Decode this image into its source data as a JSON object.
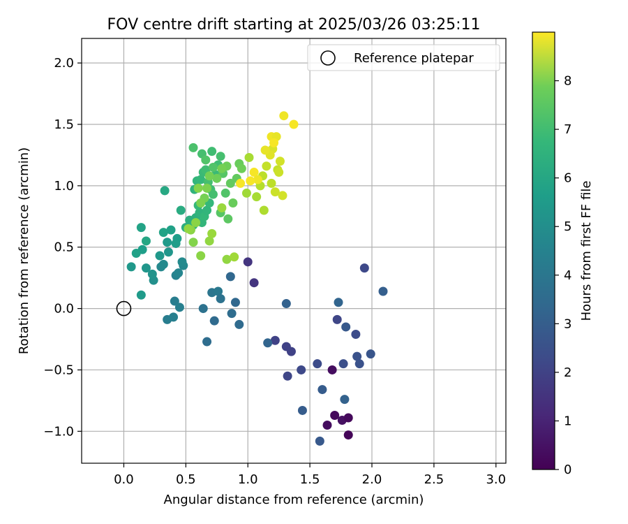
{
  "chart_data": {
    "type": "scatter",
    "title": "FOV centre drift starting at 2025/03/26 03:25:11",
    "xlabel": "Angular distance from reference (arcmin)",
    "ylabel": "Rotation from reference (arcmin)",
    "xlim": [
      -0.34,
      3.08
    ],
    "ylim": [
      -1.26,
      2.2
    ],
    "x_ticks": [
      0.0,
      0.5,
      1.0,
      1.5,
      2.0,
      2.5,
      3.0
    ],
    "x_tick_labels": [
      "0.0",
      "0.5",
      "1.0",
      "1.5",
      "2.0",
      "2.5",
      "3.0"
    ],
    "y_ticks": [
      -1.0,
      -0.5,
      0.0,
      0.5,
      1.0,
      1.5,
      2.0
    ],
    "y_tick_labels": [
      "−1.0",
      "−0.5",
      "0.0",
      "0.5",
      "1.0",
      "1.5",
      "2.0"
    ],
    "grid": true,
    "colormap": "viridis",
    "colorbar": {
      "label": "Hours from first FF file",
      "range": [
        0,
        9
      ],
      "ticks": [
        0,
        1,
        2,
        3,
        4,
        5,
        6,
        7,
        8
      ],
      "tick_labels": [
        "0",
        "1",
        "2",
        "3",
        "4",
        "5",
        "6",
        "7",
        "8"
      ]
    },
    "legend": {
      "position": "top-right",
      "entries": [
        "Reference platepar"
      ]
    },
    "reference_point": {
      "x": 0.0,
      "y": 0.0
    },
    "points": [
      [
        1.68,
        -0.5,
        0.3
      ],
      [
        1.7,
        -0.87,
        0.2
      ],
      [
        1.64,
        -0.95,
        0.3
      ],
      [
        1.76,
        -0.91,
        0.4
      ],
      [
        1.81,
        -0.89,
        0.2
      ],
      [
        1.81,
        -1.03,
        0.1
      ],
      [
        1.0,
        0.38,
        1.4
      ],
      [
        1.05,
        0.21,
        1.4
      ],
      [
        1.22,
        -0.26,
        1.8
      ],
      [
        1.31,
        -0.31,
        1.8
      ],
      [
        1.35,
        -0.35,
        1.8
      ],
      [
        1.32,
        -0.55,
        1.9
      ],
      [
        1.43,
        -0.5,
        2.0
      ],
      [
        1.56,
        -0.45,
        2.1
      ],
      [
        1.72,
        -0.09,
        1.9
      ],
      [
        1.77,
        -0.45,
        2.2
      ],
      [
        1.94,
        0.33,
        2.0
      ],
      [
        1.87,
        -0.21,
        2.1
      ],
      [
        1.88,
        -0.39,
        2.3
      ],
      [
        1.9,
        -0.45,
        2.3
      ],
      [
        1.99,
        -0.37,
        2.4
      ],
      [
        1.79,
        -0.15,
        2.5
      ],
      [
        1.6,
        -0.66,
        2.6
      ],
      [
        1.78,
        -0.74,
        2.8
      ],
      [
        1.44,
        -0.83,
        2.6
      ],
      [
        1.58,
        -1.08,
        2.5
      ],
      [
        1.31,
        0.04,
        2.8
      ],
      [
        1.73,
        0.05,
        2.9
      ],
      [
        2.09,
        0.14,
        2.7
      ],
      [
        1.16,
        -0.28,
        2.9
      ],
      [
        0.86,
        0.26,
        3.0
      ],
      [
        0.9,
        0.05,
        3.0
      ],
      [
        0.93,
        -0.13,
        3.1
      ],
      [
        0.73,
        -0.1,
        3.1
      ],
      [
        0.87,
        -0.04,
        3.2
      ],
      [
        0.67,
        -0.27,
        3.2
      ],
      [
        0.64,
        0.0,
        3.4
      ],
      [
        0.71,
        0.13,
        3.5
      ],
      [
        0.76,
        0.14,
        3.6
      ],
      [
        0.78,
        0.08,
        3.4
      ],
      [
        0.35,
        -0.09,
        3.8
      ],
      [
        0.4,
        -0.07,
        3.9
      ],
      [
        0.41,
        0.06,
        3.8
      ],
      [
        0.45,
        0.01,
        3.9
      ],
      [
        0.42,
        0.27,
        4.0
      ],
      [
        0.44,
        0.29,
        4.1
      ],
      [
        0.48,
        0.35,
        4.2
      ],
      [
        0.47,
        0.38,
        4.3
      ],
      [
        0.3,
        0.34,
        4.2
      ],
      [
        0.32,
        0.36,
        4.3
      ],
      [
        0.24,
        0.23,
        4.5
      ],
      [
        0.23,
        0.28,
        4.6
      ],
      [
        0.18,
        0.33,
        4.7
      ],
      [
        0.06,
        0.34,
        4.8
      ],
      [
        0.14,
        0.11,
        4.9
      ],
      [
        0.29,
        0.43,
        4.8
      ],
      [
        0.36,
        0.46,
        4.7
      ],
      [
        0.35,
        0.54,
        4.9
      ],
      [
        0.43,
        0.57,
        5.0
      ],
      [
        0.42,
        0.53,
        5.0
      ],
      [
        0.38,
        0.64,
        5.1
      ],
      [
        0.32,
        0.62,
        5.2
      ],
      [
        0.15,
        0.48,
        5.0
      ],
      [
        0.1,
        0.45,
        5.1
      ],
      [
        0.18,
        0.55,
        5.3
      ],
      [
        0.14,
        0.66,
        5.2
      ],
      [
        0.33,
        0.96,
        5.4
      ],
      [
        0.46,
        0.8,
        5.5
      ],
      [
        0.5,
        0.66,
        5.6
      ],
      [
        0.53,
        0.72,
        5.6
      ],
      [
        0.56,
        0.68,
        5.8
      ],
      [
        0.58,
        0.74,
        5.7
      ],
      [
        0.61,
        0.78,
        5.8
      ],
      [
        0.63,
        0.7,
        5.9
      ],
      [
        0.65,
        0.75,
        6.0
      ],
      [
        0.67,
        0.8,
        5.9
      ],
      [
        0.69,
        0.86,
        6.0
      ],
      [
        0.6,
        0.84,
        6.0
      ],
      [
        0.57,
        0.97,
        5.8
      ],
      [
        0.59,
        1.04,
        5.9
      ],
      [
        0.62,
        1.05,
        6.0
      ],
      [
        0.64,
        1.11,
        6.1
      ],
      [
        0.66,
        1.13,
        6.2
      ],
      [
        0.68,
        1.03,
        6.3
      ],
      [
        0.7,
        0.97,
        6.2
      ],
      [
        0.72,
        0.93,
        6.3
      ],
      [
        0.74,
        1.09,
        6.1
      ],
      [
        0.76,
        1.17,
        6.2
      ],
      [
        0.78,
        1.24,
        6.3
      ],
      [
        0.71,
        1.28,
        6.2
      ],
      [
        0.63,
        1.26,
        6.3
      ],
      [
        0.56,
        1.31,
        6.4
      ],
      [
        0.66,
        1.21,
        6.5
      ],
      [
        0.72,
        1.15,
        6.5
      ],
      [
        0.8,
        1.1,
        6.6
      ],
      [
        0.82,
        0.94,
        6.5
      ],
      [
        0.84,
        0.73,
        6.7
      ],
      [
        0.78,
        0.78,
        6.6
      ],
      [
        0.86,
        1.02,
        6.8
      ],
      [
        0.88,
        0.86,
        6.9
      ],
      [
        0.91,
        1.06,
        6.8
      ],
      [
        0.93,
        1.18,
        6.9
      ],
      [
        0.95,
        1.14,
        7.0
      ],
      [
        0.83,
        1.16,
        7.0
      ],
      [
        0.79,
        1.14,
        7.1
      ],
      [
        0.75,
        1.06,
        7.0
      ],
      [
        0.69,
        1.08,
        7.1
      ],
      [
        0.67,
        0.98,
        7.2
      ],
      [
        0.65,
        0.9,
        7.1
      ],
      [
        0.62,
        0.86,
        7.2
      ],
      [
        0.6,
        0.98,
        7.3
      ],
      [
        0.58,
        0.7,
        7.4
      ],
      [
        0.56,
        0.54,
        7.3
      ],
      [
        0.54,
        0.64,
        7.4
      ],
      [
        0.52,
        0.65,
        7.5
      ],
      [
        0.62,
        0.43,
        7.4
      ],
      [
        0.69,
        0.55,
        7.5
      ],
      [
        0.71,
        0.61,
        7.6
      ],
      [
        0.83,
        0.4,
        7.5
      ],
      [
        0.89,
        0.42,
        7.7
      ],
      [
        0.79,
        0.82,
        7.6
      ],
      [
        0.99,
        0.94,
        7.7
      ],
      [
        1.01,
        1.23,
        7.8
      ],
      [
        1.07,
        0.91,
        7.8
      ],
      [
        1.13,
        0.8,
        7.9
      ],
      [
        1.1,
        1.0,
        8.0
      ],
      [
        1.12,
        1.08,
        8.1
      ],
      [
        1.15,
        1.16,
        8.2
      ],
      [
        1.19,
        1.02,
        8.1
      ],
      [
        1.22,
        0.95,
        8.3
      ],
      [
        1.24,
        1.13,
        8.2
      ],
      [
        1.26,
        1.2,
        8.4
      ],
      [
        1.25,
        1.11,
        8.3
      ],
      [
        1.28,
        0.92,
        8.4
      ],
      [
        1.2,
        1.3,
        8.5
      ],
      [
        1.18,
        1.25,
        8.6
      ],
      [
        1.14,
        1.29,
        8.7
      ],
      [
        1.19,
        1.4,
        8.8
      ],
      [
        1.23,
        1.4,
        8.7
      ],
      [
        1.29,
        1.57,
        8.8
      ],
      [
        1.37,
        1.5,
        8.9
      ],
      [
        1.21,
        1.35,
        8.9
      ],
      [
        1.05,
        1.11,
        8.9
      ],
      [
        1.08,
        1.05,
        8.8
      ],
      [
        1.02,
        1.04,
        8.9
      ],
      [
        0.94,
        1.02,
        8.9
      ]
    ]
  }
}
